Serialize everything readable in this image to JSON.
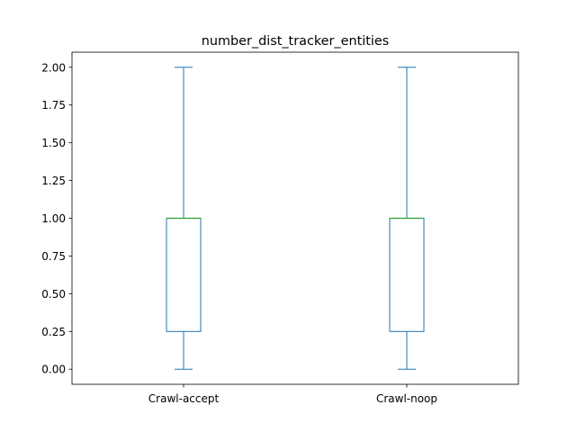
{
  "chart_data": {
    "type": "box",
    "title": "number_dist_tracker_entities",
    "xlabel": "",
    "ylabel": "",
    "ylim": [
      -0.1,
      2.1
    ],
    "yticks": [
      "0.00",
      "0.25",
      "0.50",
      "0.75",
      "1.00",
      "1.25",
      "1.50",
      "1.75",
      "2.00"
    ],
    "grid": false,
    "categories": [
      "Crawl-accept",
      "Crawl-noop"
    ],
    "boxes": [
      {
        "name": "Crawl-accept",
        "whisker_low": 0,
        "q1": 0.25,
        "median": 1.0,
        "q3": 1.0,
        "whisker_high": 2.0
      },
      {
        "name": "Crawl-noop",
        "whisker_low": 0,
        "q1": 0.25,
        "median": 1.0,
        "q3": 1.0,
        "whisker_high": 2.0
      }
    ],
    "colors": {
      "box": "#1f77b4",
      "median": "#2ca02c",
      "axes": "#000000"
    }
  }
}
